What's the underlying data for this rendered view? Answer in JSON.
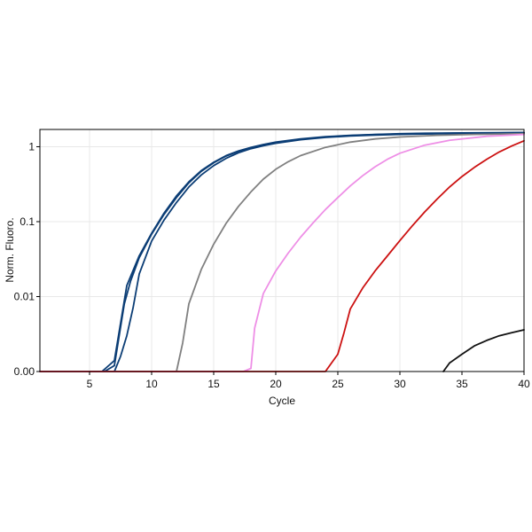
{
  "chart_data": {
    "type": "line",
    "xlabel": "Cycle",
    "ylabel": "Norm. Fluoro.",
    "xlim": [
      1,
      40
    ],
    "y_scale": "log",
    "ylim": [
      0.001,
      1.7
    ],
    "x_ticks": [
      5,
      10,
      15,
      20,
      25,
      30,
      35,
      40
    ],
    "y_ticks": [
      {
        "value": 0.001,
        "label": "0.00"
      },
      {
        "value": 0.01,
        "label": "0.01"
      },
      {
        "value": 0.1,
        "label": "0.1"
      },
      {
        "value": 1,
        "label": "1"
      }
    ],
    "grid": true,
    "series": [
      {
        "color": "#0b3d75",
        "x": [
          1,
          6,
          7,
          8,
          9,
          10,
          11,
          12,
          13,
          14,
          15,
          16,
          17,
          18,
          19,
          20,
          22,
          24,
          26,
          28,
          30,
          32,
          35,
          38,
          40
        ],
        "y": [
          0.001,
          0.001,
          0.0014,
          0.014,
          0.035,
          0.07,
          0.13,
          0.22,
          0.34,
          0.48,
          0.62,
          0.76,
          0.88,
          0.98,
          1.07,
          1.15,
          1.27,
          1.36,
          1.42,
          1.46,
          1.49,
          1.51,
          1.53,
          1.54,
          1.55
        ]
      },
      {
        "color": "#0b3d75",
        "x": [
          1,
          6.2,
          7,
          7.8,
          8.3,
          9,
          10,
          11,
          12,
          13,
          14,
          15,
          16,
          17,
          18,
          19,
          20,
          22,
          24,
          26,
          28,
          30,
          32,
          35,
          38,
          40
        ],
        "y": [
          0.001,
          0.001,
          0.0012,
          0.008,
          0.016,
          0.033,
          0.068,
          0.125,
          0.21,
          0.33,
          0.47,
          0.61,
          0.75,
          0.87,
          0.97,
          1.06,
          1.14,
          1.26,
          1.35,
          1.41,
          1.45,
          1.48,
          1.5,
          1.52,
          1.53,
          1.54
        ]
      },
      {
        "color": "#0b3d75",
        "x": [
          1,
          7,
          7.5,
          8,
          8.5,
          9,
          10,
          11,
          12,
          13,
          14,
          15,
          16,
          17,
          18,
          19,
          20,
          22,
          24,
          26,
          28,
          30,
          32,
          35,
          38,
          40
        ],
        "y": [
          0.001,
          0.001,
          0.0016,
          0.003,
          0.007,
          0.02,
          0.055,
          0.105,
          0.18,
          0.29,
          0.42,
          0.56,
          0.7,
          0.83,
          0.94,
          1.03,
          1.11,
          1.24,
          1.33,
          1.39,
          1.43,
          1.46,
          1.48,
          1.5,
          1.51,
          1.52
        ]
      },
      {
        "color": "#808080",
        "x": [
          1,
          12,
          12.5,
          13,
          14,
          15,
          16,
          17,
          18,
          19,
          20,
          21,
          22,
          24,
          26,
          28,
          30,
          33,
          36,
          40
        ],
        "y": [
          0.001,
          0.001,
          0.0024,
          0.008,
          0.023,
          0.05,
          0.095,
          0.16,
          0.25,
          0.37,
          0.5,
          0.63,
          0.76,
          0.98,
          1.15,
          1.27,
          1.35,
          1.42,
          1.46,
          1.49
        ]
      },
      {
        "color": "#ee8fe6",
        "x": [
          1,
          17.4,
          18,
          18.3,
          19,
          20,
          21,
          22,
          23,
          24,
          25,
          26,
          27,
          28,
          29,
          30,
          32,
          34,
          37,
          40
        ],
        "y": [
          0.001,
          0.001,
          0.0011,
          0.0038,
          0.011,
          0.022,
          0.038,
          0.062,
          0.096,
          0.145,
          0.21,
          0.3,
          0.41,
          0.54,
          0.68,
          0.82,
          1.05,
          1.22,
          1.38,
          1.46
        ]
      },
      {
        "color": "#cc1111",
        "x": [
          1,
          24,
          25,
          25.5,
          26,
          27,
          28,
          29,
          30,
          31,
          32,
          33,
          34,
          35,
          36,
          37,
          38,
          39,
          40
        ],
        "y": [
          0.001,
          0.001,
          0.0017,
          0.0033,
          0.0068,
          0.013,
          0.022,
          0.035,
          0.056,
          0.088,
          0.135,
          0.2,
          0.29,
          0.4,
          0.53,
          0.68,
          0.85,
          1.02,
          1.2
        ]
      },
      {
        "color": "#111111",
        "x": [
          33.5,
          34,
          35,
          36,
          37,
          38,
          39,
          40
        ],
        "y": [
          0.001,
          0.0013,
          0.0017,
          0.0022,
          0.0026,
          0.003,
          0.0033,
          0.0036
        ]
      }
    ]
  }
}
